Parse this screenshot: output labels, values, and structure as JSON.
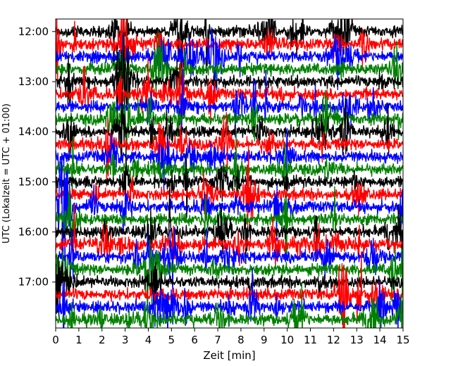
{
  "chart_data": {
    "type": "line",
    "title": "",
    "xlabel": "Zeit  [min]",
    "ylabel": "UTC (Lokalzeit = UTC + 01:00)",
    "xlim": [
      0,
      15
    ],
    "x_ticks": [
      "0",
      "1",
      "2",
      "3",
      "4",
      "5",
      "6",
      "7",
      "8",
      "9",
      "10",
      "11",
      "12",
      "13",
      "14",
      "15"
    ],
    "y_range_utc": [
      "11:45",
      "17:55"
    ],
    "y_ticks": [
      "12:00",
      "13:00",
      "14:00",
      "15:00",
      "16:00",
      "17:00"
    ],
    "trace_interval_min": 15,
    "first_trace_utc": "12:00",
    "last_trace_utc": "17:45",
    "color_cycle": [
      "#000000",
      "#ff0000",
      "#0000ff",
      "#008000"
    ],
    "grid": false,
    "legend": "none"
  }
}
